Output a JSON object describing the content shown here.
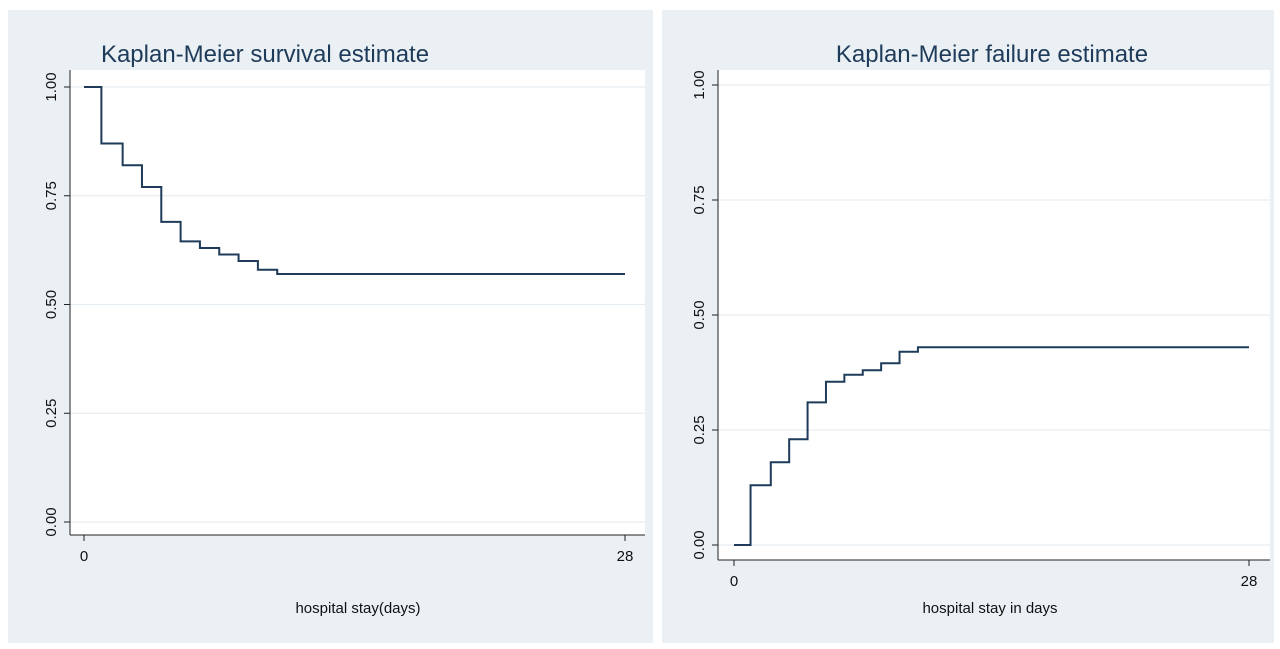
{
  "chart_data": [
    {
      "type": "line",
      "step": true,
      "title": "Kaplan-Meier survival estimate",
      "xlabel": "hospital stay(days)",
      "ylabel": "",
      "xlim": [
        0,
        28
      ],
      "ylim": [
        0,
        1
      ],
      "xticks": [
        "0",
        "28"
      ],
      "yticks": [
        "0.00",
        "0.25",
        "0.50",
        "0.75",
        "1.00"
      ],
      "grid": true,
      "series": [
        {
          "x": [
            0,
            0.9,
            2.0,
            3.0,
            4.0,
            5.0,
            6.0,
            7.0,
            8.0,
            9.0,
            10.0,
            28
          ],
          "y": [
            1.0,
            0.87,
            0.82,
            0.77,
            0.69,
            0.645,
            0.63,
            0.615,
            0.6,
            0.58,
            0.57,
            0.57
          ]
        }
      ],
      "colors": {
        "line": "#1f3b5a",
        "panel": "#eaf0f4",
        "plot": "#ffffff",
        "grid": "#e6edf1"
      }
    },
    {
      "type": "line",
      "step": true,
      "title": "Kaplan-Meier failure estimate",
      "xlabel": "hospital stay in days",
      "ylabel": "",
      "xlim": [
        0,
        28
      ],
      "ylim": [
        0,
        1
      ],
      "xticks": [
        "0",
        "28"
      ],
      "yticks": [
        "0.00",
        "0.25",
        "0.50",
        "0.75",
        "1.00"
      ],
      "grid": true,
      "series": [
        {
          "x": [
            0,
            0.9,
            2.0,
            3.0,
            4.0,
            5.0,
            6.0,
            7.0,
            8.0,
            9.0,
            10.0,
            28
          ],
          "y": [
            0.0,
            0.13,
            0.18,
            0.23,
            0.31,
            0.355,
            0.37,
            0.38,
            0.395,
            0.42,
            0.43,
            0.43
          ]
        }
      ],
      "colors": {
        "line": "#1f3b5a",
        "panel": "#eaf0f4",
        "plot": "#ffffff",
        "grid": "#e6edf1"
      }
    }
  ]
}
